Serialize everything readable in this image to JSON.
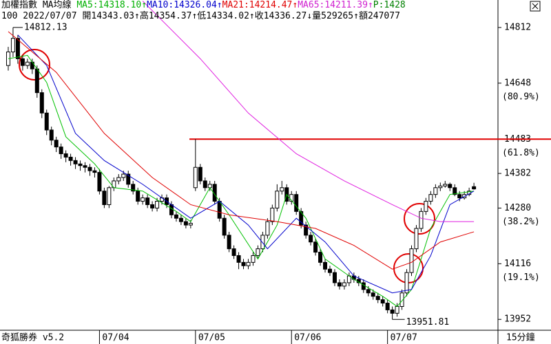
{
  "chart_data": {
    "type": "candlestick",
    "title": "加權指數 MA均線",
    "indicators": [
      {
        "text": "MA5:14318.10↑",
        "color": "#00b000"
      },
      {
        "text": "MA10:14326.04↑",
        "color": "#0000cc"
      },
      {
        "text": "MA21:14214.47↑",
        "color": "#e00000"
      },
      {
        "text": "MA65:14211.39↑",
        "color": "#d020d0"
      },
      {
        "text": "P:1428",
        "color": "#008000"
      }
    ],
    "info_line": "100 2022/07/07 開14343.03↑高14354.37↑低14334.02↑收14336.27↓量529265↑額247077",
    "footer_left": "奇狐勝券 v5.2",
    "footer_right": "15分鐘",
    "xticks": [
      {
        "value": 19,
        "label": "07/04"
      },
      {
        "value": 39,
        "label": "07/05"
      },
      {
        "value": 59,
        "label": "07/06"
      },
      {
        "value": 79,
        "label": "07/07"
      }
    ],
    "xlim": [
      -1,
      101
    ],
    "ylim": [
      13920,
      14893
    ],
    "yticks": [
      14812,
      14648,
      14483,
      14382,
      14280,
      14116,
      13952
    ],
    "fib_levels": [
      {
        "value": 14648,
        "label": "(80.9%)"
      },
      {
        "value": 14483,
        "label": "(61.8%)"
      },
      {
        "value": 14280,
        "label": "(38.2%)"
      },
      {
        "value": 14116,
        "label": "(19.1%)"
      }
    ],
    "open": [
      14700,
      14740,
      14780,
      14720,
      14700,
      14710,
      14690,
      14620,
      14560,
      14510,
      14480,
      14460,
      14440,
      14430,
      14420,
      14410,
      14405,
      14400,
      14390,
      14385,
      14330,
      14290,
      14340,
      14360,
      14370,
      14380,
      14350,
      14330,
      14300,
      14310,
      14290,
      14280,
      14300,
      14310,
      14290,
      14260,
      14250,
      14240,
      14230,
      14340,
      14400,
      14360,
      14340,
      14350,
      14300,
      14250,
      14200,
      14160,
      14140,
      14120,
      14110,
      14120,
      14140,
      14160,
      14200,
      14240,
      14280,
      14330,
      14340,
      14300,
      14320,
      14270,
      14230,
      14200,
      14180,
      14150,
      14120,
      14100,
      14090,
      14060,
      14050,
      14060,
      14080,
      14070,
      14060,
      14040,
      14030,
      14020,
      14010,
      14000,
      13980,
      13970,
      13990,
      14030,
      14090,
      14160,
      14220,
      14270,
      14300,
      14320,
      14340,
      14345,
      14350,
      14340,
      14320,
      14310,
      14320,
      14343.03
    ],
    "high": [
      14755,
      14812.13,
      14790,
      14730,
      14720,
      14720,
      14700,
      14630,
      14570,
      14520,
      14490,
      14470,
      14450,
      14440,
      14430,
      14420,
      14415,
      14410,
      14400,
      14395,
      14340,
      14345,
      14370,
      14380,
      14390,
      14390,
      14360,
      14340,
      14320,
      14320,
      14300,
      14310,
      14320,
      14320,
      14300,
      14270,
      14260,
      14250,
      14245,
      14483,
      14410,
      14370,
      14360,
      14360,
      14310,
      14260,
      14210,
      14170,
      14150,
      14130,
      14130,
      14150,
      14170,
      14210,
      14250,
      14290,
      14350,
      14360,
      14350,
      14330,
      14330,
      14280,
      14240,
      14210,
      14190,
      14160,
      14130,
      14110,
      14100,
      14070,
      14070,
      14090,
      14090,
      14080,
      14070,
      14050,
      14040,
      14030,
      14020,
      14010,
      13990,
      14000,
      14040,
      14100,
      14170,
      14230,
      14280,
      14310,
      14330,
      14350,
      14355,
      14360,
      14355,
      14350,
      14330,
      14330,
      14340,
      14354.37
    ],
    "low": [
      14685,
      14725,
      14705,
      14685,
      14690,
      14675,
      14605,
      14545,
      14495,
      14465,
      14445,
      14425,
      14415,
      14405,
      14395,
      14390,
      14385,
      14375,
      14370,
      14320,
      14280,
      14280,
      14330,
      14350,
      14360,
      14340,
      14320,
      14290,
      14290,
      14280,
      14270,
      14270,
      14290,
      14280,
      14250,
      14240,
      14230,
      14220,
      14220,
      14330,
      14350,
      14330,
      14330,
      14290,
      14240,
      14190,
      14150,
      14130,
      14100,
      14100,
      14100,
      14110,
      14130,
      14150,
      14190,
      14230,
      14270,
      14320,
      14290,
      14290,
      14260,
      14220,
      14190,
      14170,
      14140,
      14110,
      14090,
      14080,
      14050,
      14040,
      14040,
      14050,
      14060,
      14050,
      14030,
      14020,
      14010,
      14000,
      13990,
      13970,
      13951.81,
      13960,
      13980,
      14020,
      14080,
      14150,
      14210,
      14260,
      14290,
      14310,
      14330,
      14340,
      14330,
      14315,
      14300,
      14305,
      14315,
      14334.02
    ],
    "close": [
      14740,
      14780,
      14720,
      14700,
      14710,
      14690,
      14620,
      14560,
      14510,
      14480,
      14460,
      14440,
      14430,
      14420,
      14410,
      14405,
      14400,
      14390,
      14385,
      14330,
      14290,
      14340,
      14360,
      14370,
      14380,
      14350,
      14330,
      14300,
      14310,
      14290,
      14280,
      14300,
      14310,
      14290,
      14260,
      14250,
      14240,
      14230,
      14235,
      14400,
      14360,
      14340,
      14350,
      14300,
      14250,
      14200,
      14160,
      14140,
      14120,
      14110,
      14120,
      14140,
      14160,
      14200,
      14240,
      14280,
      14330,
      14340,
      14300,
      14320,
      14270,
      14230,
      14200,
      14180,
      14150,
      14120,
      14100,
      14090,
      14060,
      14050,
      14060,
      14080,
      14070,
      14060,
      14040,
      14030,
      14020,
      14010,
      14000,
      13980,
      13970,
      13990,
      14030,
      14090,
      14160,
      14220,
      14270,
      14300,
      14320,
      14340,
      14345,
      14350,
      14340,
      14320,
      14310,
      14320,
      14330,
      14336.27
    ],
    "series": [
      {
        "name": "MA5",
        "color": "#00c000",
        "x": [
          0,
          4,
          8,
          12,
          18,
          22,
          28,
          35,
          38,
          42,
          46,
          52,
          56,
          58,
          62,
          66,
          72,
          78,
          81,
          84,
          88,
          92,
          97
        ],
        "values": [
          14720,
          14730,
          14650,
          14490,
          14410,
          14340,
          14330,
          14270,
          14240,
          14340,
          14260,
          14130,
          14230,
          14320,
          14250,
          14130,
          14070,
          14020,
          13990,
          14040,
          14220,
          14320,
          14330
        ]
      },
      {
        "name": "MA10",
        "color": "#0000cc",
        "x": [
          2,
          8,
          14,
          20,
          28,
          38,
          44,
          50,
          54,
          60,
          66,
          72,
          80,
          84,
          88,
          92,
          97
        ],
        "values": [
          14790,
          14700,
          14500,
          14420,
          14350,
          14250,
          14300,
          14230,
          14160,
          14250,
          14180,
          14080,
          14030,
          14040,
          14140,
          14290,
          14330
        ]
      },
      {
        "name": "MA21",
        "color": "#e00000",
        "x": [
          0,
          10,
          20,
          30,
          38,
          46,
          56,
          64,
          72,
          80,
          84,
          90,
          97
        ],
        "values": [
          14800,
          14680,
          14500,
          14370,
          14290,
          14260,
          14240,
          14220,
          14170,
          14100,
          14120,
          14180,
          14210
        ]
      },
      {
        "name": "MA65",
        "color": "#e020e0",
        "x": [
          28,
          40,
          50,
          60,
          70,
          80,
          86,
          90,
          97
        ],
        "values": [
          14890,
          14720,
          14560,
          14440,
          14360,
          14290,
          14250,
          14240,
          14240
        ]
      }
    ]
  }
}
